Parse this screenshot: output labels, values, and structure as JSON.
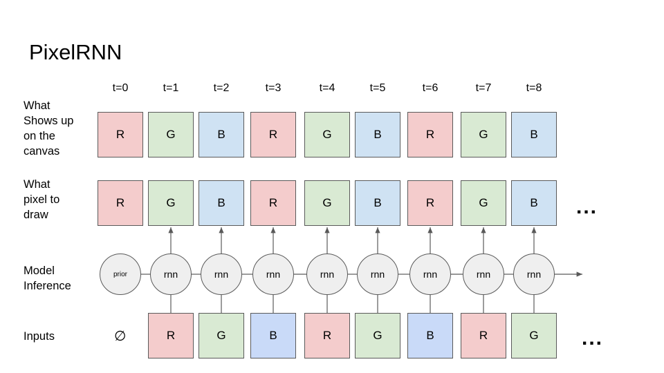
{
  "title": "PixelRNN",
  "row_labels": {
    "canvas": "What\nShows up\non the\ncanvas",
    "draw": "What\npixel to\ndraw",
    "model": "Model\nInference",
    "inputs": "Inputs"
  },
  "timesteps": [
    "t=0",
    "t=1",
    "t=2",
    "t=3",
    "t=4",
    "t=5",
    "t=6",
    "t=7",
    "t=8"
  ],
  "canvas_row": [
    "R",
    "G",
    "B",
    "R",
    "G",
    "B",
    "R",
    "G",
    "B"
  ],
  "draw_row": [
    "R",
    "G",
    "B",
    "R",
    "G",
    "B",
    "R",
    "G",
    "B"
  ],
  "model_row": [
    "prior",
    "rnn",
    "rnn",
    "rnn",
    "rnn",
    "rnn",
    "rnn",
    "rnn",
    "rnn"
  ],
  "inputs_empty_symbol": "∅",
  "inputs_row": [
    "R",
    "G",
    "B",
    "R",
    "G",
    "B",
    "R",
    "G"
  ],
  "ellipsis": "...",
  "colors": {
    "R": "#f4cccc",
    "G": "#d9ead3",
    "B": "#cfe2f3",
    "B_input": "#c9daf8",
    "node": "#efefef",
    "stroke": "#595959"
  }
}
